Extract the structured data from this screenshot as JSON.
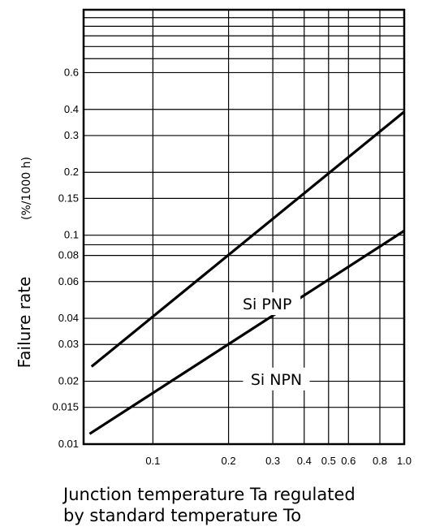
{
  "chart_data": {
    "type": "line",
    "xlabel": [
      "Junction temperature Ta regulated",
      "by standard temperature To"
    ],
    "ylabel": "Failure rate",
    "ylabel_unit": "(%/1000 h)",
    "x_scale": "log",
    "y_scale": "log",
    "xlim": [
      0.053,
      1.0
    ],
    "ylim": [
      0.01,
      1.2
    ],
    "x_ticks": [
      {
        "value": 0.1,
        "label": "0.1"
      },
      {
        "value": 0.2,
        "label": "0.2"
      },
      {
        "value": 0.3,
        "label": "0.3"
      },
      {
        "value": 0.4,
        "label": "0.4"
      },
      {
        "value": 0.5,
        "label": "0.5"
      },
      {
        "value": 0.6,
        "label": "0.6"
      },
      {
        "value": 0.8,
        "label": "0.8"
      },
      {
        "value": 1.0,
        "label": "1.0"
      }
    ],
    "y_ticks": [
      {
        "value": 0.01,
        "label": "0.01"
      },
      {
        "value": 0.015,
        "label": "0.015"
      },
      {
        "value": 0.02,
        "label": "0.02"
      },
      {
        "value": 0.03,
        "label": "0.03"
      },
      {
        "value": 0.04,
        "label": "0.04"
      },
      {
        "value": 0.06,
        "label": "0.06"
      },
      {
        "value": 0.08,
        "label": "0.08"
      },
      {
        "value": 0.1,
        "label": "0.1"
      },
      {
        "value": 0.15,
        "label": "0.15"
      },
      {
        "value": 0.2,
        "label": "0.2"
      },
      {
        "value": 0.3,
        "label": "0.3"
      },
      {
        "value": 0.4,
        "label": "0.4"
      },
      {
        "value": 0.6,
        "label": "0.6"
      }
    ],
    "extra_gridlines_y": [
      0.09,
      0.7,
      0.8,
      0.9,
      1.0,
      1.1
    ],
    "grid": true,
    "series": [
      {
        "name": "Si PNP",
        "x": [
          0.057,
          1.0
        ],
        "y": [
          0.0235,
          0.39
        ]
      },
      {
        "name": "Si NPN",
        "x": [
          0.056,
          1.0
        ],
        "y": [
          0.0112,
          0.105
        ]
      }
    ]
  }
}
